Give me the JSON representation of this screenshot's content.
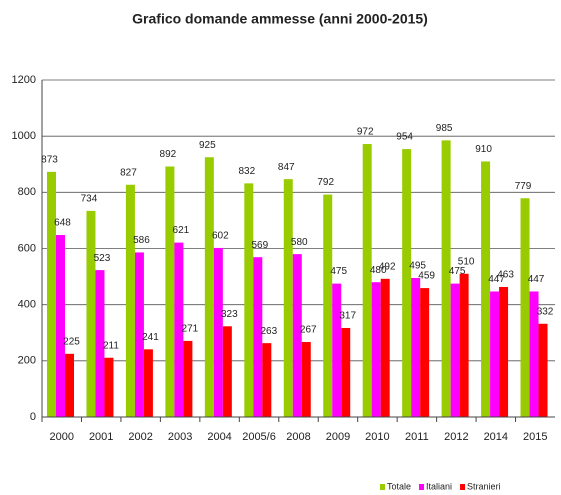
{
  "chart_data": {
    "type": "bar",
    "title": "Grafico domande ammesse (anni 2000-2015)",
    "categories": [
      "2000",
      "2001",
      "2002",
      "2003",
      "2004",
      "2005/6",
      "2008",
      "2009",
      "2010",
      "2011",
      "2012",
      "2014",
      "2015"
    ],
    "series": [
      {
        "name": "Totale",
        "color": "#99cc00",
        "values": [
          873,
          734,
          827,
          892,
          925,
          832,
          847,
          792,
          972,
          954,
          985,
          910,
          779
        ]
      },
      {
        "name": "Italiani",
        "color": "#ff00ff",
        "values": [
          648,
          523,
          586,
          621,
          602,
          569,
          580,
          475,
          480,
          495,
          475,
          447,
          447
        ]
      },
      {
        "name": "Stranieri",
        "color": "#ff0000",
        "values": [
          225,
          211,
          241,
          271,
          323,
          263,
          267,
          317,
          492,
          459,
          510,
          463,
          332
        ]
      }
    ],
    "ylim": [
      0,
      1200
    ],
    "yticks": [
      0,
      200,
      400,
      600,
      800,
      1000,
      1200
    ],
    "grid": true,
    "legend": "bottom-right"
  }
}
